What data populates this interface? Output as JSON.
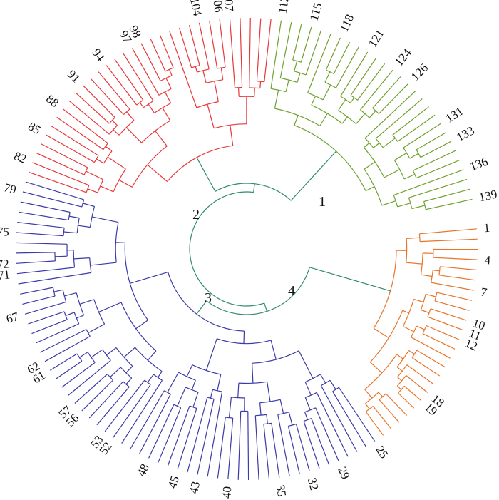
{
  "figure": {
    "leaf_count": 139,
    "cluster_labels": [
      "1",
      "2",
      "3",
      "4"
    ],
    "tip_labels": [
      "1",
      "4",
      "7",
      "10",
      "11",
      "12",
      "18",
      "19",
      "25",
      "29",
      "32",
      "35",
      "40",
      "43",
      "45",
      "48",
      "53",
      "57",
      "62",
      "61",
      "56",
      "52",
      "67",
      "71",
      "75",
      "72",
      "79",
      "82",
      "85",
      "88",
      "91",
      "94",
      "98",
      "97",
      "104",
      "106",
      "107",
      "112",
      "115",
      "118",
      "121",
      "124",
      "126",
      "131",
      "133",
      "136",
      "139"
    ],
    "clusters": [
      {
        "name": "1",
        "color": "#e8752a"
      },
      {
        "name": "2",
        "color": "#3b3ba8"
      },
      {
        "name": "3",
        "color": "#e8373a"
      },
      {
        "name": "4",
        "color": "#6ea12e"
      }
    ],
    "backbone_color": "#2e8b6e"
  }
}
